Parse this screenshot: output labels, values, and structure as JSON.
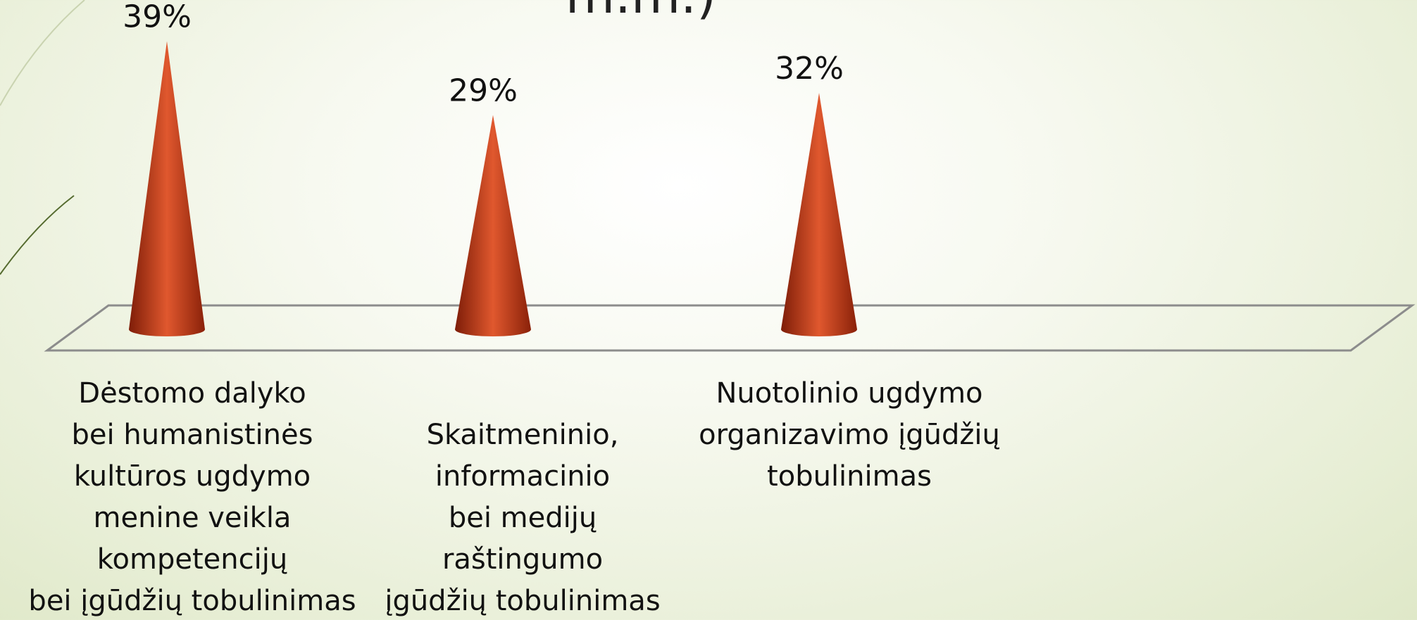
{
  "chart_data": {
    "type": "cone",
    "title": "m.m.)",
    "categories": [
      "Dėstomo dalyko\nbei humanistinės\nkultūros ugdymo\nmenine veikla\nkompetencijų\nbei įgūdžių tobulinimas",
      "Skaitmeninio,\ninformacinio\nbei medijų\nraštingumo\nįgūdžių tobulinimas",
      "Nuotolinio ugdymo\norganizavimo įgūdžių\ntobulinimas"
    ],
    "values": [
      39,
      29,
      32
    ],
    "value_labels": [
      "39%",
      "29%",
      "32%"
    ],
    "color": "#c23a16"
  }
}
